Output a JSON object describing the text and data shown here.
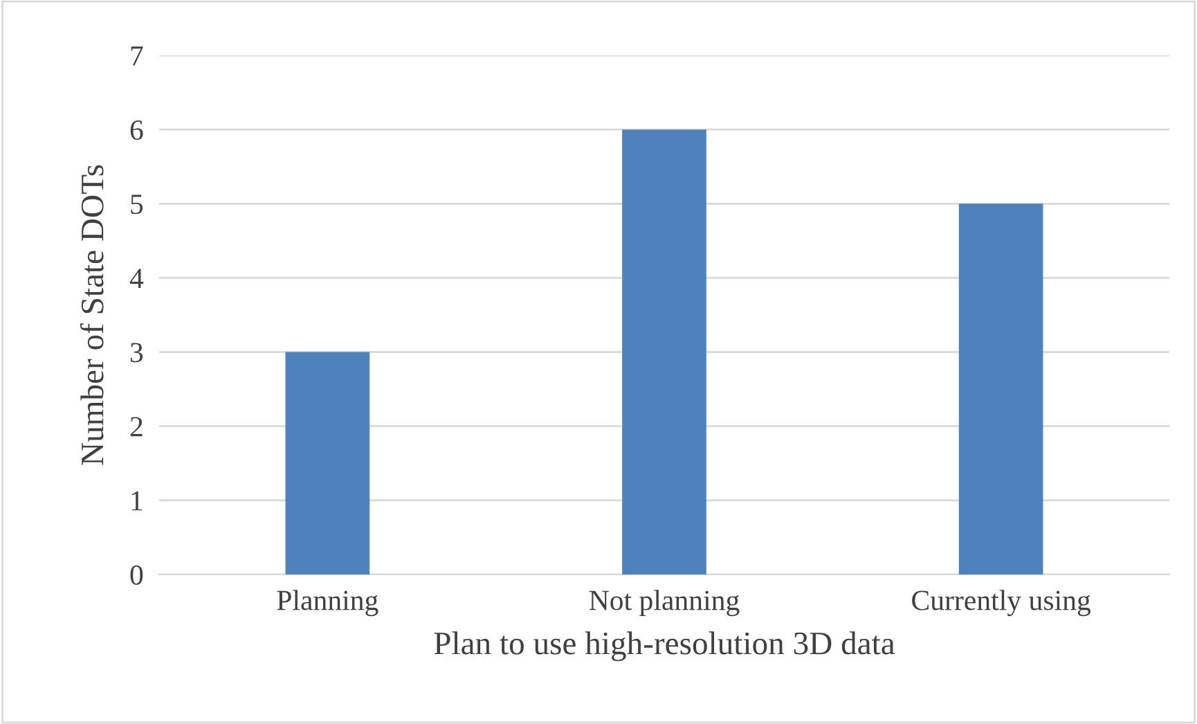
{
  "chart_data": {
    "type": "bar",
    "xlabel": "Plan to use high-resolution 3D data",
    "ylabel": "Number of State DOTs",
    "categories": [
      "Planning",
      "Not planning",
      "Currently using"
    ],
    "values": [
      3,
      6,
      5
    ],
    "color": "#4f81bd",
    "ylim": [
      0,
      7
    ],
    "yticks": [
      0,
      1,
      2,
      3,
      4,
      5,
      6,
      7
    ],
    "grid": "y"
  }
}
